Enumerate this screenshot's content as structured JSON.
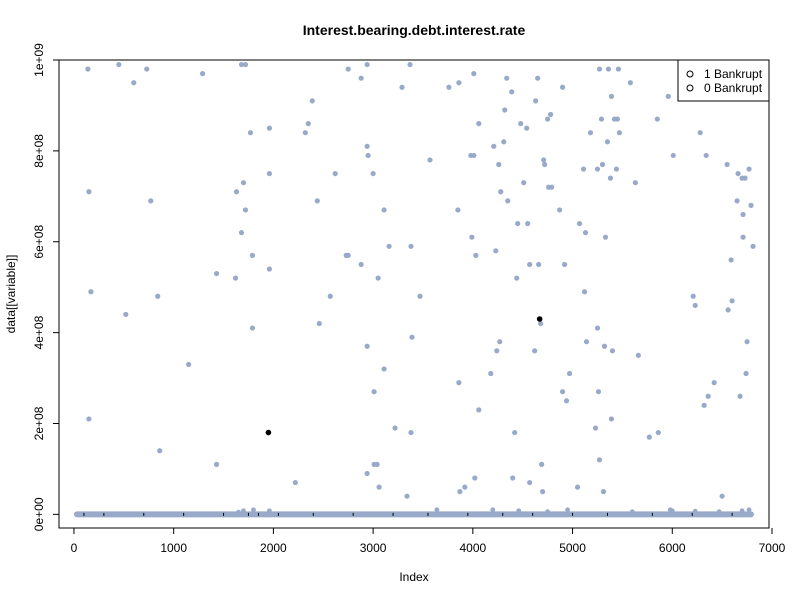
{
  "chart_data": {
    "type": "scatter",
    "title": "Interest.bearing.debt.interest.rate",
    "xlabel": "Index",
    "ylabel": "data[[variable]]",
    "xlim": [
      -150,
      6970
    ],
    "ylim": [
      -30000000,
      1000000000
    ],
    "x_ticks": [
      0,
      1000,
      2000,
      3000,
      4000,
      5000,
      6000,
      7000
    ],
    "x_tick_labels": [
      "0",
      "1000",
      "2000",
      "3000",
      "4000",
      "5000",
      "6000",
      "7000"
    ],
    "y_ticks": [
      0,
      200000000,
      400000000,
      600000000,
      800000000,
      1000000000
    ],
    "y_tick_labels": [
      "0e+00",
      "2e+08",
      "4e+08",
      "6e+08",
      "8e+08",
      "1e+09"
    ],
    "grid": false,
    "legend_position": "top-right",
    "legend": [
      {
        "label": "1 Bankrupt",
        "symbol": "o"
      },
      {
        "label": "0 Bankrupt",
        "symbol": "o"
      }
    ],
    "series": [
      {
        "name": "0 Bankrupt",
        "color": "#98a9c9",
        "baseline_x_range": [
          0,
          6819
        ],
        "baseline_y": 0,
        "points": [
          [
            140,
            980000000
          ],
          [
            450,
            990000000
          ],
          [
            600,
            950000000
          ],
          [
            730,
            980000000
          ],
          [
            1290,
            970000000
          ],
          [
            1680,
            990000000
          ],
          [
            1720,
            990000000
          ],
          [
            2880,
            960000000
          ],
          [
            2940,
            990000000
          ],
          [
            3290,
            940000000
          ],
          [
            3370,
            990000000
          ],
          [
            3760,
            940000000
          ],
          [
            3860,
            950000000
          ],
          [
            4010,
            970000000
          ],
          [
            4340,
            960000000
          ],
          [
            4390,
            930000000
          ],
          [
            4650,
            960000000
          ],
          [
            4900,
            940000000
          ],
          [
            5270,
            980000000
          ],
          [
            5360,
            980000000
          ],
          [
            5460,
            980000000
          ],
          [
            5580,
            950000000
          ],
          [
            5960,
            920000000
          ],
          [
            2750,
            980000000
          ],
          [
            2390,
            910000000
          ],
          [
            150,
            710000000
          ],
          [
            170,
            490000000
          ],
          [
            150,
            210000000
          ],
          [
            520,
            440000000
          ],
          [
            770,
            690000000
          ],
          [
            840,
            480000000
          ],
          [
            860,
            140000000
          ],
          [
            1150,
            330000000
          ],
          [
            1430,
            530000000
          ],
          [
            1430,
            110000000
          ],
          [
            1620,
            520000000
          ],
          [
            1630,
            710000000
          ],
          [
            1680,
            620000000
          ],
          [
            1700,
            730000000
          ],
          [
            1720,
            670000000
          ],
          [
            1770,
            840000000
          ],
          [
            1790,
            570000000
          ],
          [
            1790,
            410000000
          ],
          [
            1960,
            850000000
          ],
          [
            1960,
            750000000
          ],
          [
            1960,
            540000000
          ],
          [
            2220,
            70000000
          ],
          [
            2320,
            840000000
          ],
          [
            2350,
            860000000
          ],
          [
            2440,
            690000000
          ],
          [
            2460,
            420000000
          ],
          [
            2570,
            480000000
          ],
          [
            2620,
            750000000
          ],
          [
            2750,
            570000000
          ],
          [
            2880,
            550000000
          ],
          [
            2940,
            810000000
          ],
          [
            2950,
            790000000
          ],
          [
            2940,
            370000000
          ],
          [
            2940,
            90000000
          ],
          [
            3000,
            750000000
          ],
          [
            3010,
            270000000
          ],
          [
            3010,
            110000000
          ],
          [
            3040,
            110000000
          ],
          [
            3050,
            520000000
          ],
          [
            3060,
            60000000
          ],
          [
            3110,
            670000000
          ],
          [
            3110,
            320000000
          ],
          [
            3160,
            590000000
          ],
          [
            3220,
            190000000
          ],
          [
            3340,
            40000000
          ],
          [
            3380,
            590000000
          ],
          [
            3390,
            390000000
          ],
          [
            3380,
            180000000
          ],
          [
            3470,
            480000000
          ],
          [
            3570,
            780000000
          ],
          [
            3850,
            670000000
          ],
          [
            3860,
            290000000
          ],
          [
            3870,
            50000000
          ],
          [
            3920,
            60000000
          ],
          [
            3980,
            790000000
          ],
          [
            4010,
            790000000
          ],
          [
            3990,
            610000000
          ],
          [
            4030,
            570000000
          ],
          [
            4020,
            80000000
          ],
          [
            4060,
            860000000
          ],
          [
            4060,
            230000000
          ],
          [
            4180,
            310000000
          ],
          [
            4210,
            810000000
          ],
          [
            4230,
            580000000
          ],
          [
            4240,
            360000000
          ],
          [
            4260,
            770000000
          ],
          [
            4270,
            380000000
          ],
          [
            4280,
            710000000
          ],
          [
            4310,
            820000000
          ],
          [
            4320,
            890000000
          ],
          [
            4350,
            690000000
          ],
          [
            4400,
            80000000
          ],
          [
            4420,
            180000000
          ],
          [
            4440,
            520000000
          ],
          [
            4450,
            640000000
          ],
          [
            4480,
            860000000
          ],
          [
            4510,
            730000000
          ],
          [
            4540,
            850000000
          ],
          [
            4550,
            640000000
          ],
          [
            4570,
            550000000
          ],
          [
            4570,
            70000000
          ],
          [
            4620,
            360000000
          ],
          [
            4630,
            910000000
          ],
          [
            4660,
            550000000
          ],
          [
            4680,
            420000000
          ],
          [
            4690,
            110000000
          ],
          [
            4700,
            50000000
          ],
          [
            4710,
            780000000
          ],
          [
            4720,
            770000000
          ],
          [
            4750,
            870000000
          ],
          [
            4760,
            720000000
          ],
          [
            4780,
            880000000
          ],
          [
            4790,
            720000000
          ],
          [
            4870,
            670000000
          ],
          [
            4900,
            270000000
          ],
          [
            4920,
            550000000
          ],
          [
            4940,
            250000000
          ],
          [
            4970,
            310000000
          ],
          [
            5050,
            60000000
          ],
          [
            5070,
            640000000
          ],
          [
            5110,
            760000000
          ],
          [
            5120,
            490000000
          ],
          [
            5130,
            620000000
          ],
          [
            5140,
            380000000
          ],
          [
            5180,
            840000000
          ],
          [
            5230,
            190000000
          ],
          [
            5250,
            760000000
          ],
          [
            5250,
            410000000
          ],
          [
            5260,
            270000000
          ],
          [
            5290,
            870000000
          ],
          [
            5300,
            770000000
          ],
          [
            5310,
            50000000
          ],
          [
            5320,
            370000000
          ],
          [
            5330,
            610000000
          ],
          [
            5350,
            820000000
          ],
          [
            5380,
            740000000
          ],
          [
            5390,
            920000000
          ],
          [
            5390,
            210000000
          ],
          [
            5400,
            360000000
          ],
          [
            5420,
            870000000
          ],
          [
            5440,
            760000000
          ],
          [
            5450,
            870000000
          ],
          [
            5470,
            840000000
          ],
          [
            5630,
            730000000
          ],
          [
            5660,
            350000000
          ],
          [
            5770,
            170000000
          ],
          [
            5850,
            870000000
          ],
          [
            5860,
            180000000
          ],
          [
            6010,
            790000000
          ],
          [
            6210,
            480000000
          ],
          [
            6230,
            460000000
          ],
          [
            6280,
            840000000
          ],
          [
            6320,
            240000000
          ],
          [
            6340,
            790000000
          ],
          [
            6360,
            260000000
          ],
          [
            6420,
            290000000
          ],
          [
            6500,
            40000000
          ],
          [
            6550,
            770000000
          ],
          [
            6560,
            450000000
          ],
          [
            6590,
            560000000
          ],
          [
            6600,
            470000000
          ],
          [
            6650,
            690000000
          ],
          [
            6660,
            750000000
          ],
          [
            6680,
            260000000
          ],
          [
            6700,
            740000000
          ],
          [
            6710,
            610000000
          ],
          [
            6710,
            660000000
          ],
          [
            6730,
            740000000
          ],
          [
            6740,
            310000000
          ],
          [
            6750,
            380000000
          ],
          [
            6770,
            760000000
          ],
          [
            6790,
            680000000
          ],
          [
            6810,
            590000000
          ],
          [
            5270,
            120000000
          ],
          [
            2730,
            570000000
          ]
        ],
        "near_baseline_points": [
          [
            1650,
            5000000
          ],
          [
            1700,
            8000000
          ],
          [
            1800,
            10000000
          ],
          [
            1960,
            8000000
          ],
          [
            3640,
            10000000
          ],
          [
            4200,
            10000000
          ],
          [
            4460,
            8000000
          ],
          [
            4750,
            6000000
          ],
          [
            4950,
            10000000
          ],
          [
            5600,
            6000000
          ],
          [
            5980,
            10000000
          ],
          [
            6000,
            8000000
          ],
          [
            6230,
            7000000
          ],
          [
            6470,
            6000000
          ],
          [
            6700,
            8000000
          ],
          [
            6770,
            10000000
          ]
        ]
      },
      {
        "name": "1 Bankrupt",
        "color": "#000000",
        "points": [
          [
            1950,
            180000000
          ],
          [
            4670,
            430000000
          ]
        ],
        "baseline_points": [
          [
            100,
            0
          ],
          [
            300,
            0
          ],
          [
            700,
            0
          ],
          [
            1100,
            0
          ],
          [
            1500,
            0
          ],
          [
            1750,
            0
          ],
          [
            1850,
            0
          ],
          [
            2050,
            0
          ],
          [
            2400,
            0
          ],
          [
            2800,
            0
          ],
          [
            3200,
            0
          ],
          [
            3550,
            0
          ],
          [
            3950,
            0
          ],
          [
            4300,
            0
          ],
          [
            4600,
            0
          ],
          [
            5000,
            0
          ],
          [
            5350,
            0
          ],
          [
            5800,
            0
          ],
          [
            6200,
            0
          ],
          [
            6600,
            0
          ]
        ]
      }
    ]
  }
}
